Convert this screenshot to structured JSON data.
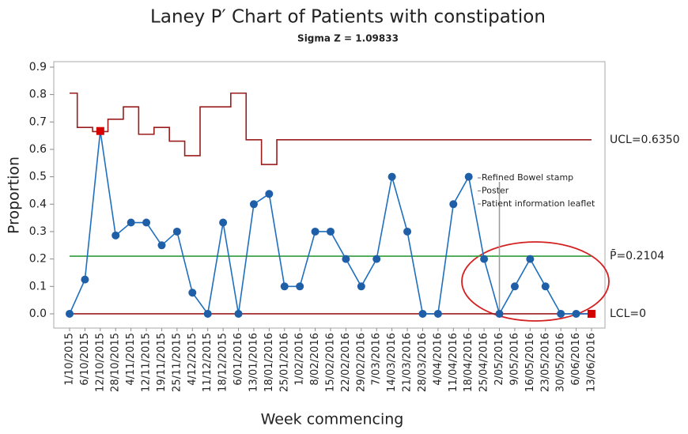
{
  "chart_data": {
    "type": "line",
    "title": "Laney P′ Chart of Patients with constipation",
    "subtitle": "Sigma Z = 1.09833",
    "x_label": "Week commencing",
    "y_label": "Proportion",
    "categories": [
      "1/10/2015",
      "6/10/2015",
      "12/10/2015",
      "28/10/2015",
      "4/11/2015",
      "12/11/2015",
      "19/11/2015",
      "25/11/2015",
      "4/12/2015",
      "11/12/2015",
      "18/12/2015",
      "6/01/2016",
      "13/01/2016",
      "18/01/2016",
      "25/01/2016",
      "1/02/2016",
      "8/02/2016",
      "15/02/2016",
      "22/02/2016",
      "29/02/2016",
      "7/03/2016",
      "14/03/2016",
      "21/03/2016",
      "28/03/2016",
      "4/04/2016",
      "11/04/2016",
      "18/04/2016",
      "25/04/2016",
      "2/05/2016",
      "9/05/2016",
      "16/05/2016",
      "23/05/2016",
      "30/05/2016",
      "6/06/2016",
      "13/06/2016"
    ],
    "series": [
      {
        "color": "#1f6fbf",
        "values": [
          0,
          0.125,
          0.667,
          0.286,
          0.333,
          0.333,
          0.25,
          0.3,
          0.077,
          0,
          0.333,
          0,
          0.4,
          0.4375,
          0.1,
          0.1,
          0.3,
          0.3,
          0.2,
          0.1,
          0.2,
          0.5,
          0.3,
          0,
          0,
          0.4,
          0.5,
          0.2,
          0,
          0.1,
          0.2,
          0.1,
          0,
          0,
          0
        ],
        "point_colors": [
          "#1f5fa8",
          "#1f5fa8",
          "#d40000",
          "#1f5fa8",
          "#1f5fa8",
          "#1f5fa8",
          "#1f5fa8",
          "#1f5fa8",
          "#1f5fa8",
          "#1f5fa8",
          "#1f5fa8",
          "#1f5fa8",
          "#1f5fa8",
          "#1f5fa8",
          "#1f5fa8",
          "#1f5fa8",
          "#1f5fa8",
          "#1f5fa8",
          "#1f5fa8",
          "#1f5fa8",
          "#1f5fa8",
          "#1f5fa8",
          "#1f5fa8",
          "#1f5fa8",
          "#1f5fa8",
          "#1f5fa8",
          "#1f5fa8",
          "#1f5fa8",
          "#1f5fa8",
          "#1f5fa8",
          "#1f5fa8",
          "#1f5fa8",
          "#1f5fa8",
          "#1f5fa8",
          "#d40000"
        ]
      }
    ],
    "ucl": {
      "label": "UCL=0.6350",
      "color": "#9b1c1c",
      "values": [
        0.805,
        0.68,
        0.665,
        0.71,
        0.755,
        0.655,
        0.68,
        0.63,
        0.577,
        0.755,
        0.755,
        0.805,
        0.635,
        0.545,
        0.635,
        0.635,
        0.635,
        0.635,
        0.635,
        0.635,
        0.635,
        0.635,
        0.635,
        0.635,
        0.635,
        0.635,
        0.635,
        0.635,
        0.635,
        0.635,
        0.635,
        0.635,
        0.635,
        0.635,
        0.635
      ]
    },
    "center_line": {
      "value": 0.2104,
      "label": "P̄=0.2104",
      "color": "#2e9b3a"
    },
    "lcl": {
      "value": 0,
      "label": "LCL=0",
      "color": "#9b1c1c"
    },
    "annotation": {
      "index": 28,
      "lines": [
        "Refined Bowel stamp",
        "Poster",
        "Patient information leaflet"
      ]
    },
    "ylim": [
      -0.052,
      0.92
    ],
    "yticks": [
      {
        "value": 0,
        "label": "0.0"
      },
      {
        "value": 0.1,
        "label": "0.1"
      },
      {
        "value": 0.2,
        "label": "0.2"
      },
      {
        "value": 0.3,
        "label": "0.3"
      },
      {
        "value": 0.4,
        "label": "0.4"
      },
      {
        "value": 0.5,
        "label": "0.5"
      },
      {
        "value": 0.6,
        "label": "0.6"
      },
      {
        "value": 0.7,
        "label": "0.7"
      },
      {
        "value": 0.8,
        "label": "0.8"
      },
      {
        "value": 0.9,
        "label": "0.9"
      }
    ]
  }
}
